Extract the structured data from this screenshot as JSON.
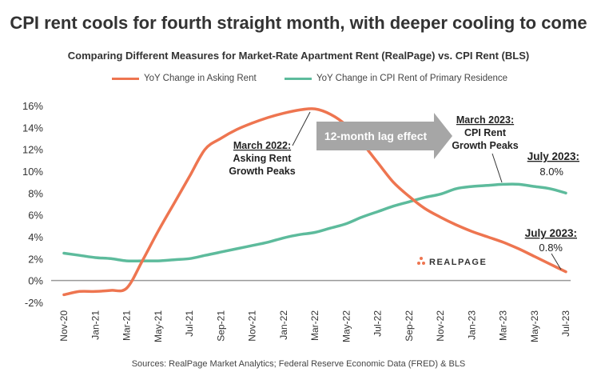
{
  "title": "CPI rent cools for fourth straight month, with deeper cooling to come",
  "subtitle": "Comparing Different Measures for Market-Rate Apartment Rent (RealPage) vs. CPI Rent (BLS)",
  "source": "Sources: RealPage Market Analytics; Federal Reserve Economic Data (FRED) & BLS",
  "logo": "REALPAGE",
  "colors": {
    "asking": "#EE7550",
    "cpi": "#5DBB9C",
    "arrow": "#A6A6A6",
    "zero": "#999999"
  },
  "annotations": {
    "lag": "12-month lag effect",
    "march2022": {
      "head": "March 2022:",
      "l1": "Asking Rent",
      "l2": "Growth Peaks"
    },
    "march2023": {
      "head": "March 2023:",
      "l1": "CPI Rent",
      "l2": "Growth Peaks"
    },
    "july_cpi": {
      "head": "July 2023:",
      "val": "8.0%"
    },
    "july_ask": {
      "head": "July 2023:",
      "val": "0.8%"
    }
  },
  "chart_data": {
    "type": "line",
    "title": "CPI rent cools for fourth straight month, with deeper cooling to come",
    "subtitle": "Comparing Different Measures for Market-Rate Apartment Rent (RealPage) vs. CPI Rent (BLS)",
    "ylim": [
      -2,
      16
    ],
    "yticks": [
      "-2%",
      "0%",
      "2%",
      "4%",
      "6%",
      "8%",
      "10%",
      "12%",
      "14%",
      "16%"
    ],
    "xticks": [
      "Nov-20",
      "Jan-21",
      "Mar-21",
      "May-21",
      "Jul-21",
      "Sep-21",
      "Nov-21",
      "Jan-22",
      "Mar-22",
      "May-22",
      "Jul-22",
      "Sep-22",
      "Nov-22",
      "Jan-23",
      "Mar-23",
      "May-23",
      "Jul-23"
    ],
    "x": [
      "2020-11",
      "2020-12",
      "2021-01",
      "2021-02",
      "2021-03",
      "2021-04",
      "2021-05",
      "2021-06",
      "2021-07",
      "2021-08",
      "2021-09",
      "2021-10",
      "2021-11",
      "2021-12",
      "2022-01",
      "2022-02",
      "2022-03",
      "2022-04",
      "2022-05",
      "2022-06",
      "2022-07",
      "2022-08",
      "2022-09",
      "2022-10",
      "2022-11",
      "2022-12",
      "2023-01",
      "2023-02",
      "2023-03",
      "2023-04",
      "2023-05",
      "2023-06",
      "2023-07"
    ],
    "legend_position": "top",
    "series": [
      {
        "name": "YoY Change in Asking Rent",
        "values": [
          -1.3,
          -1.0,
          -1.0,
          -0.9,
          -0.7,
          1.8,
          4.5,
          7.0,
          9.5,
          12.0,
          13.0,
          13.8,
          14.4,
          14.9,
          15.3,
          15.6,
          15.7,
          15.2,
          14.2,
          12.6,
          10.8,
          9.0,
          7.7,
          6.6,
          5.8,
          5.1,
          4.5,
          4.0,
          3.5,
          2.9,
          2.2,
          1.5,
          0.8
        ]
      },
      {
        "name": "YoY Change in CPI Rent of Primary Residence",
        "values": [
          2.5,
          2.3,
          2.1,
          2.0,
          1.8,
          1.8,
          1.8,
          1.9,
          2.0,
          2.3,
          2.6,
          2.9,
          3.2,
          3.5,
          3.9,
          4.2,
          4.4,
          4.8,
          5.2,
          5.8,
          6.3,
          6.8,
          7.2,
          7.6,
          7.9,
          8.4,
          8.6,
          8.7,
          8.8,
          8.8,
          8.6,
          8.4,
          8.0
        ]
      }
    ]
  }
}
